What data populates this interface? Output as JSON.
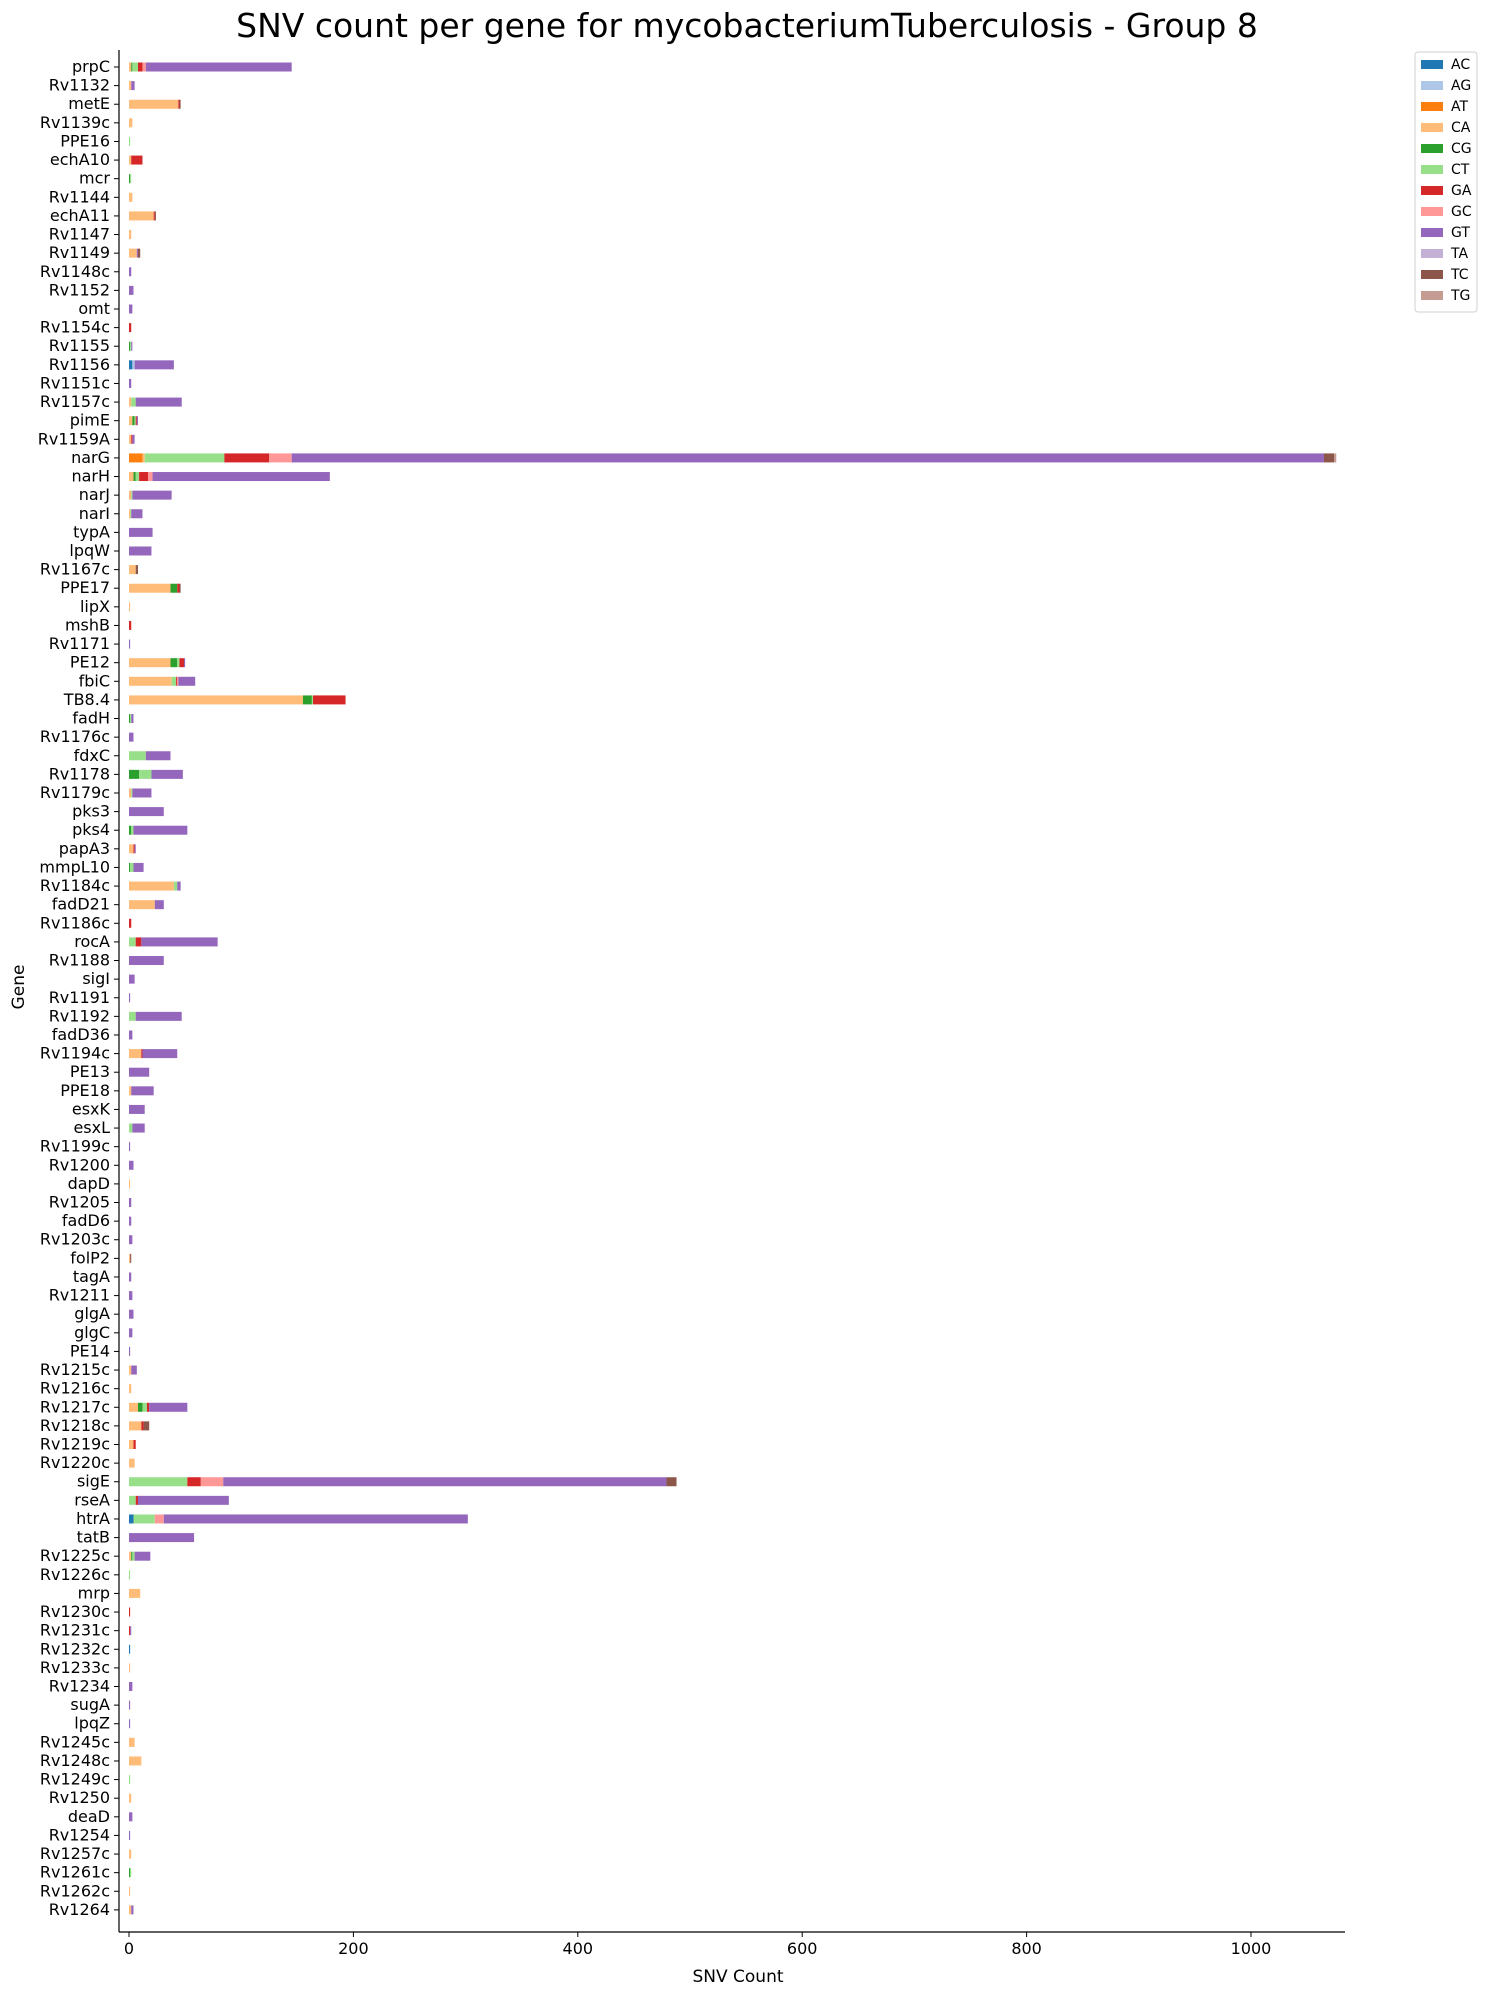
{
  "chart_data": {
    "type": "bar",
    "orientation": "horizontal",
    "stacked": true,
    "title": "SNV count per gene for mycobacteriumTuberculosis - Group 8",
    "xlabel": "SNV Count",
    "ylabel": "Gene",
    "xlim": [
      0,
      1085
    ],
    "xticks": [
      "0",
      "200",
      "400",
      "600",
      "800",
      "1000"
    ],
    "grid": false,
    "legend_position": "top-right",
    "series_names": [
      "AC",
      "AG",
      "AT",
      "CA",
      "CG",
      "CT",
      "GA",
      "GC",
      "GT",
      "TA",
      "TC",
      "TG"
    ],
    "colors": [
      "#1f77b4",
      "#aec7e8",
      "#ff7f0e",
      "#ffbb78",
      "#2ca02c",
      "#98df8a",
      "#d62728",
      "#ff9896",
      "#9467bd",
      "#c5b0d5",
      "#8c564b",
      "#c49c94"
    ],
    "categories": [
      "prpC",
      "Rv1132",
      "metE",
      "Rv1139c",
      "PPE16",
      "echA10",
      "mcr",
      "Rv1144",
      "echA11",
      "Rv1147",
      "Rv1149",
      "Rv1148c",
      "Rv1152",
      "omt",
      "Rv1154c",
      "Rv1155",
      "Rv1156",
      "Rv1151c",
      "Rv1157c",
      "pimE",
      "Rv1159A",
      "narG",
      "narH",
      "narJ",
      "narI",
      "typA",
      "lpqW",
      "Rv1167c",
      "PPE17",
      "lipX",
      "mshB",
      "Rv1171",
      "PE12",
      "fbiC",
      "TB8.4",
      "fadH",
      "Rv1176c",
      "fdxC",
      "Rv1178",
      "Rv1179c",
      "pks3",
      "pks4",
      "papA3",
      "mmpL10",
      "Rv1184c",
      "fadD21",
      "Rv1186c",
      "rocA",
      "Rv1188",
      "sigI",
      "Rv1191",
      "Rv1192",
      "fadD36",
      "Rv1194c",
      "PE13",
      "PPE18",
      "esxK",
      "esxL",
      "Rv1199c",
      "Rv1200",
      "dapD",
      "Rv1205",
      "fadD6",
      "Rv1203c",
      "folP2",
      "tagA",
      "Rv1211",
      "glgA",
      "glgC",
      "PE14",
      "Rv1215c",
      "Rv1216c",
      "Rv1217c",
      "Rv1218c",
      "Rv1219c",
      "Rv1220c",
      "sigE",
      "rseA",
      "htrA",
      "tatB",
      "Rv1225c",
      "Rv1226c",
      "mrp",
      "Rv1230c",
      "Rv1231c",
      "Rv1232c",
      "Rv1233c",
      "Rv1234",
      "sugA",
      "lpqZ",
      "Rv1245c",
      "Rv1248c",
      "Rv1249c",
      "Rv1250",
      "deaD",
      "Rv1254",
      "Rv1257c",
      "Rv1261c",
      "Rv1262c",
      "Rv1264"
    ],
    "values": [
      [
        0,
        0,
        0,
        2,
        1,
        5,
        4,
        3,
        130,
        0,
        0,
        0
      ],
      [
        0,
        0,
        0,
        2,
        0,
        0,
        0,
        0,
        3,
        0,
        0,
        0
      ],
      [
        0,
        0,
        0,
        44,
        0,
        0,
        1,
        0,
        0,
        0,
        1,
        0
      ],
      [
        0,
        0,
        0,
        3,
        0,
        0,
        0,
        0,
        0,
        0,
        0,
        0
      ],
      [
        0,
        0,
        0,
        0,
        0,
        1,
        0,
        0,
        0,
        0,
        0,
        0
      ],
      [
        0,
        0,
        0,
        2,
        0,
        0,
        10,
        0,
        0,
        0,
        0,
        0
      ],
      [
        0,
        0,
        0,
        0,
        1,
        1,
        0,
        0,
        0,
        0,
        0,
        0
      ],
      [
        0,
        0,
        0,
        3,
        0,
        0,
        0,
        0,
        0,
        0,
        0,
        0
      ],
      [
        0,
        0,
        0,
        22,
        0,
        0,
        1,
        0,
        0,
        0,
        1,
        0
      ],
      [
        0,
        0,
        0,
        2,
        0,
        0,
        0,
        0,
        0,
        0,
        0,
        0
      ],
      [
        0,
        0,
        0,
        7,
        0,
        0,
        0,
        0,
        1,
        0,
        2,
        0
      ],
      [
        0,
        0,
        0,
        0,
        0,
        0,
        0,
        0,
        2,
        0,
        0,
        0
      ],
      [
        0,
        0,
        0,
        0,
        0,
        0,
        0,
        0,
        4,
        0,
        0,
        0
      ],
      [
        0,
        0,
        0,
        0,
        0,
        0,
        0,
        0,
        3,
        0,
        0,
        0
      ],
      [
        0,
        0,
        0,
        0,
        0,
        0,
        2,
        0,
        0,
        0,
        0,
        0
      ],
      [
        0,
        0,
        0,
        0,
        1,
        1,
        0,
        0,
        1,
        0,
        0,
        0
      ],
      [
        3,
        2,
        0,
        0,
        0,
        0,
        0,
        0,
        35,
        0,
        0,
        0
      ],
      [
        0,
        0,
        0,
        0,
        0,
        0,
        0,
        0,
        2,
        0,
        0,
        0
      ],
      [
        0,
        0,
        0,
        2,
        0,
        4,
        0,
        0,
        41,
        0,
        0,
        0
      ],
      [
        0,
        0,
        0,
        3,
        2,
        1,
        1,
        0,
        1,
        0,
        0,
        0
      ],
      [
        0,
        0,
        0,
        2,
        0,
        0,
        1,
        0,
        2,
        0,
        0,
        0
      ],
      [
        0,
        0,
        12,
        2,
        0,
        71,
        40,
        20,
        920,
        0,
        9,
        2
      ],
      [
        0,
        0,
        0,
        4,
        2,
        3,
        8,
        4,
        158,
        0,
        0,
        0
      ],
      [
        0,
        0,
        0,
        2,
        0,
        1,
        0,
        0,
        35,
        0,
        0,
        0
      ],
      [
        0,
        0,
        0,
        1,
        0,
        1,
        0,
        0,
        10,
        0,
        0,
        0
      ],
      [
        0,
        0,
        0,
        0,
        0,
        0,
        0,
        0,
        21,
        0,
        0,
        0
      ],
      [
        0,
        0,
        0,
        0,
        0,
        0,
        0,
        0,
        20,
        0,
        0,
        0
      ],
      [
        0,
        0,
        0,
        6,
        0,
        0,
        0,
        0,
        0,
        0,
        2,
        0
      ],
      [
        0,
        0,
        0,
        37,
        6,
        0,
        2,
        0,
        0,
        0,
        1,
        0
      ],
      [
        0,
        0,
        0,
        1,
        0,
        0,
        0,
        0,
        0,
        0,
        0,
        0
      ],
      [
        0,
        0,
        0,
        0,
        0,
        0,
        2,
        0,
        0,
        0,
        0,
        0
      ],
      [
        0,
        0,
        0,
        0,
        0,
        0,
        0,
        0,
        1,
        0,
        0,
        0
      ],
      [
        0,
        0,
        0,
        37,
        6,
        2,
        4,
        0,
        1,
        0,
        0,
        0
      ],
      [
        0,
        0,
        0,
        38,
        0,
        4,
        1,
        1,
        15,
        0,
        0,
        0
      ],
      [
        0,
        0,
        0,
        155,
        8,
        1,
        29,
        0,
        0,
        0,
        0,
        0
      ],
      [
        0,
        0,
        0,
        0,
        1,
        1,
        0,
        0,
        2,
        0,
        0,
        0
      ],
      [
        0,
        0,
        0,
        0,
        0,
        0,
        0,
        0,
        4,
        0,
        0,
        0
      ],
      [
        0,
        0,
        0,
        0,
        0,
        15,
        0,
        0,
        22,
        0,
        0,
        0
      ],
      [
        0,
        0,
        0,
        0,
        9,
        11,
        0,
        0,
        28,
        0,
        0,
        0
      ],
      [
        0,
        0,
        0,
        2,
        0,
        1,
        0,
        0,
        17,
        0,
        0,
        0
      ],
      [
        0,
        0,
        0,
        0,
        0,
        0,
        0,
        0,
        31,
        0,
        0,
        0
      ],
      [
        0,
        0,
        0,
        0,
        2,
        2,
        0,
        0,
        48,
        0,
        0,
        0
      ],
      [
        0,
        0,
        0,
        4,
        0,
        0,
        1,
        0,
        1,
        0,
        0,
        0
      ],
      [
        0,
        0,
        0,
        0,
        1,
        3,
        0,
        0,
        9,
        0,
        0,
        0
      ],
      [
        0,
        0,
        0,
        40,
        0,
        3,
        0,
        0,
        3,
        0,
        0,
        0
      ],
      [
        0,
        0,
        0,
        23,
        0,
        0,
        0,
        0,
        8,
        0,
        0,
        0
      ],
      [
        0,
        0,
        0,
        0,
        0,
        0,
        2,
        0,
        0,
        0,
        0,
        0
      ],
      [
        0,
        0,
        0,
        0,
        0,
        6,
        5,
        0,
        68,
        0,
        0,
        0
      ],
      [
        0,
        0,
        0,
        0,
        0,
        0,
        0,
        0,
        31,
        0,
        0,
        0
      ],
      [
        0,
        0,
        0,
        0,
        0,
        0,
        0,
        0,
        5,
        0,
        0,
        0
      ],
      [
        0,
        0,
        0,
        0,
        0,
        0,
        0,
        0,
        1,
        0,
        0,
        0
      ],
      [
        0,
        0,
        0,
        0,
        0,
        6,
        0,
        0,
        41,
        0,
        0,
        0
      ],
      [
        0,
        0,
        0,
        0,
        0,
        0,
        0,
        0,
        3,
        0,
        0,
        0
      ],
      [
        0,
        0,
        0,
        11,
        0,
        0,
        1,
        0,
        31,
        0,
        0,
        0
      ],
      [
        0,
        0,
        0,
        0,
        0,
        0,
        0,
        0,
        18,
        0,
        0,
        0
      ],
      [
        0,
        0,
        0,
        2,
        0,
        0,
        0,
        0,
        20,
        0,
        0,
        0
      ],
      [
        0,
        0,
        0,
        0,
        0,
        0,
        0,
        0,
        14,
        0,
        0,
        0
      ],
      [
        0,
        0,
        0,
        0,
        0,
        3,
        0,
        0,
        11,
        0,
        0,
        0
      ],
      [
        0,
        0,
        0,
        0,
        0,
        0,
        0,
        0,
        1,
        0,
        0,
        0
      ],
      [
        0,
        0,
        0,
        0,
        0,
        0,
        0,
        0,
        4,
        0,
        0,
        0
      ],
      [
        0,
        0,
        0,
        1,
        0,
        0,
        0,
        0,
        0,
        0,
        0,
        0
      ],
      [
        0,
        0,
        0,
        0,
        0,
        0,
        0,
        0,
        2,
        0,
        0,
        0
      ],
      [
        0,
        0,
        0,
        0,
        0,
        0,
        0,
        0,
        2,
        0,
        0,
        0
      ],
      [
        0,
        0,
        0,
        0,
        0,
        0,
        0,
        0,
        3,
        0,
        0,
        0
      ],
      [
        0,
        0,
        0,
        1,
        0,
        0,
        0,
        0,
        0,
        0,
        1,
        0
      ],
      [
        0,
        0,
        0,
        0,
        0,
        0,
        0,
        0,
        2,
        0,
        0,
        0
      ],
      [
        0,
        0,
        0,
        0,
        0,
        0,
        0,
        0,
        3,
        0,
        0,
        0
      ],
      [
        0,
        0,
        0,
        0,
        0,
        0,
        0,
        0,
        4,
        0,
        0,
        0
      ],
      [
        0,
        0,
        0,
        0,
        0,
        0,
        0,
        0,
        3,
        0,
        0,
        0
      ],
      [
        0,
        0,
        0,
        0,
        0,
        0,
        0,
        0,
        1,
        0,
        0,
        0
      ],
      [
        0,
        0,
        0,
        2,
        0,
        0,
        0,
        0,
        5,
        0,
        0,
        0
      ],
      [
        0,
        0,
        0,
        2,
        0,
        0,
        0,
        0,
        0,
        0,
        0,
        0
      ],
      [
        0,
        0,
        0,
        8,
        4,
        4,
        2,
        0,
        34,
        0,
        0,
        0
      ],
      [
        0,
        0,
        0,
        11,
        0,
        0,
        2,
        0,
        0,
        0,
        5,
        0
      ],
      [
        0,
        0,
        0,
        4,
        0,
        0,
        2,
        0,
        0,
        0,
        0,
        0
      ],
      [
        0,
        0,
        0,
        5,
        0,
        0,
        0,
        0,
        0,
        0,
        0,
        0
      ],
      [
        0,
        0,
        0,
        0,
        0,
        52,
        12,
        20,
        395,
        0,
        9,
        0
      ],
      [
        0,
        0,
        0,
        0,
        0,
        6,
        2,
        0,
        81,
        0,
        0,
        0
      ],
      [
        4,
        0,
        0,
        0,
        0,
        19,
        0,
        8,
        271,
        0,
        0,
        0
      ],
      [
        0,
        0,
        0,
        0,
        0,
        0,
        0,
        0,
        58,
        0,
        0,
        0
      ],
      [
        0,
        0,
        0,
        2,
        1,
        2,
        0,
        0,
        14,
        0,
        0,
        0
      ],
      [
        0,
        0,
        0,
        0,
        0,
        1,
        0,
        0,
        0,
        0,
        0,
        0
      ],
      [
        0,
        0,
        0,
        10,
        0,
        0,
        0,
        0,
        0,
        0,
        0,
        0
      ],
      [
        0,
        0,
        0,
        0,
        0,
        0,
        1,
        0,
        0,
        0,
        0,
        0
      ],
      [
        0,
        0,
        0,
        0,
        0,
        0,
        1,
        0,
        1,
        0,
        0,
        0
      ],
      [
        1,
        0,
        0,
        0,
        0,
        0,
        0,
        0,
        0,
        0,
        0,
        0
      ],
      [
        0,
        0,
        0,
        1,
        0,
        0,
        0,
        0,
        0,
        0,
        0,
        0
      ],
      [
        0,
        0,
        0,
        0,
        0,
        0,
        0,
        0,
        3,
        0,
        0,
        0
      ],
      [
        0,
        0,
        0,
        0,
        0,
        0,
        0,
        0,
        1,
        0,
        0,
        0
      ],
      [
        0,
        0,
        0,
        0,
        0,
        0,
        0,
        0,
        1,
        0,
        0,
        0
      ],
      [
        0,
        0,
        0,
        5,
        0,
        0,
        0,
        0,
        0,
        0,
        0,
        0
      ],
      [
        0,
        0,
        0,
        11,
        0,
        0,
        0,
        0,
        0,
        0,
        0,
        0
      ],
      [
        0,
        0,
        0,
        0,
        0,
        1,
        0,
        0,
        0,
        0,
        0,
        0
      ],
      [
        0,
        0,
        0,
        2,
        0,
        0,
        0,
        0,
        0,
        0,
        0,
        0
      ],
      [
        0,
        0,
        0,
        0,
        0,
        0,
        0,
        0,
        3,
        0,
        0,
        0
      ],
      [
        0,
        0,
        0,
        0,
        0,
        0,
        0,
        0,
        1,
        0,
        0,
        0
      ],
      [
        0,
        0,
        0,
        2,
        0,
        0,
        0,
        0,
        0,
        0,
        0,
        0
      ],
      [
        0,
        0,
        0,
        0,
        1,
        1,
        0,
        0,
        0,
        0,
        0,
        0
      ],
      [
        0,
        0,
        0,
        1,
        0,
        0,
        0,
        0,
        0,
        0,
        0,
        0
      ],
      [
        0,
        0,
        0,
        2,
        0,
        0,
        0,
        0,
        2,
        0,
        0,
        0
      ]
    ]
  }
}
